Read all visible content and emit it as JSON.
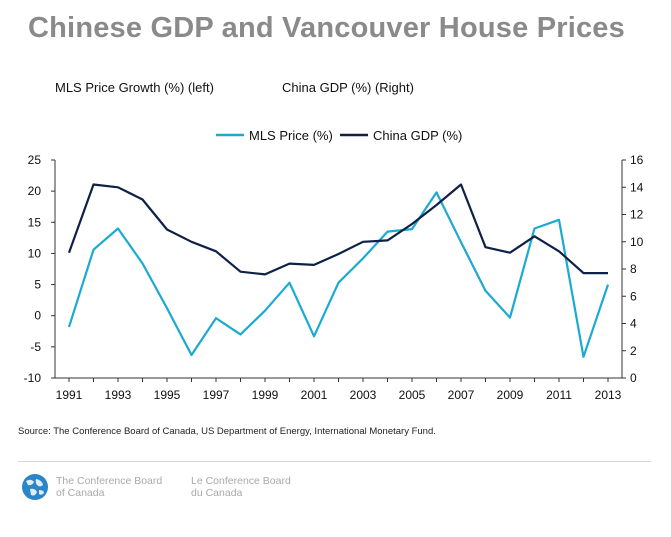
{
  "title": "Chinese GDP and Vancouver House Prices",
  "axis_notes": {
    "left": "MLS Price Growth (%)  (left)",
    "right": "China GDP (%) (Right)"
  },
  "source": "Source: The Conference Board of Canada, US Department of Energy, International Monetary Fund.",
  "footer": {
    "en_line1": "The Conference Board",
    "en_line2": "of Canada",
    "fr_line1": "Le Conference Board",
    "fr_line2": "du Canada",
    "logo_icon": "globe-logo-icon"
  },
  "chart_data": {
    "type": "line",
    "x": [
      1991,
      1992,
      1993,
      1994,
      1995,
      1996,
      1997,
      1998,
      1999,
      2000,
      2001,
      2002,
      2003,
      2004,
      2005,
      2006,
      2007,
      2008,
      2009,
      2010,
      2011,
      2012,
      2013
    ],
    "x_ticks": [
      "1991",
      "1993",
      "1995",
      "1997",
      "1999",
      "2001",
      "2003",
      "2005",
      "2007",
      "2009",
      "2011",
      "2013"
    ],
    "y_left_ticks": [
      "25",
      "20",
      "15",
      "10",
      "5",
      "0",
      "-5",
      "-10"
    ],
    "y_right_ticks": [
      "16",
      "14",
      "12",
      "10",
      "8",
      "6",
      "4",
      "2",
      "0"
    ],
    "ylim_left": [
      -10,
      25
    ],
    "ylim_right": [
      0,
      16
    ],
    "legend_position": "top-center",
    "grid": false,
    "series": [
      {
        "name": "MLS Price (%)",
        "axis": "left",
        "color": "#1aaad2",
        "values": [
          -1.8,
          10.6,
          14.0,
          8.4,
          1.2,
          -6.3,
          -0.4,
          -3.0,
          0.8,
          5.3,
          -3.3,
          5.3,
          9.2,
          13.5,
          13.9,
          19.8,
          11.8,
          4.0,
          -0.3,
          14.0,
          15.4,
          -6.6,
          5.0
        ]
      },
      {
        "name": "China GDP (%)",
        "axis": "right",
        "color": "#0f2147",
        "values": [
          9.2,
          14.2,
          14.0,
          13.1,
          10.9,
          10.0,
          9.3,
          7.8,
          7.6,
          8.4,
          8.3,
          9.1,
          10.0,
          10.1,
          11.3,
          12.7,
          14.2,
          9.6,
          9.2,
          10.4,
          9.3,
          7.7,
          7.7
        ]
      }
    ]
  }
}
